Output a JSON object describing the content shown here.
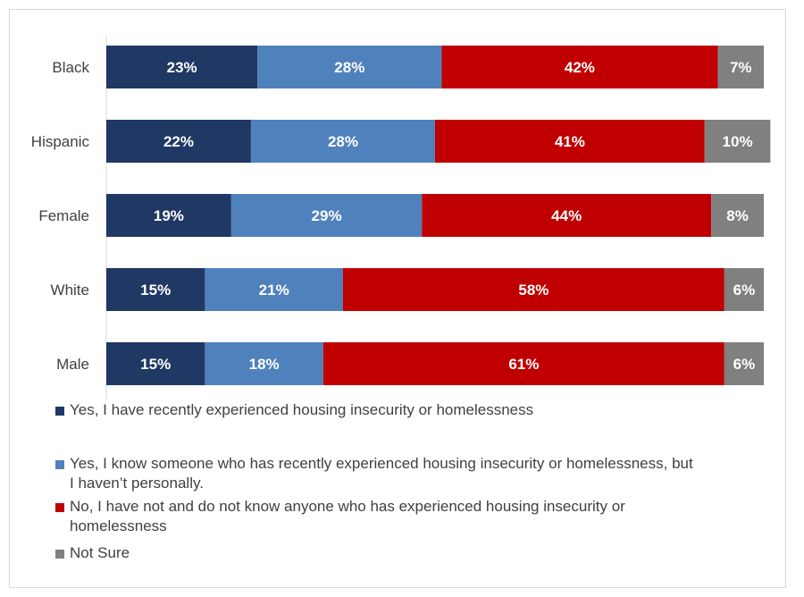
{
  "chart_data": {
    "type": "bar",
    "orientation": "horizontal",
    "stacked": true,
    "categories": [
      "Black",
      "Hispanic",
      "Female",
      "White",
      "Male"
    ],
    "series": [
      {
        "name": "Yes, I have recently experienced housing insecurity or homelessness",
        "color": "#1f3864",
        "values": [
          23,
          22,
          19,
          15,
          15
        ],
        "labels": [
          "23%",
          "22%",
          "19%",
          "15%",
          "15%"
        ]
      },
      {
        "name": "Yes, I know someone who has recently experienced housing insecurity or homelessness, but I haven’t personally.",
        "color": "#4f81bd",
        "values": [
          28,
          28,
          29,
          21,
          18
        ],
        "labels": [
          "28%",
          "28%",
          "29%",
          "21%",
          "18%"
        ]
      },
      {
        "name": "No, I have not and do not know anyone who has experienced housing insecurity or homelessness",
        "color": "#c00000",
        "values": [
          42,
          41,
          44,
          58,
          61
        ],
        "labels": [
          "42%",
          "41%",
          "44%",
          "58%",
          "61%"
        ]
      },
      {
        "name": "Not Sure",
        "color": "#808080",
        "values": [
          7,
          10,
          8,
          6,
          6
        ],
        "labels": [
          "7%",
          "10%",
          "8%",
          "6%",
          "6%"
        ]
      }
    ],
    "xlim": [
      0,
      100
    ],
    "grid": false,
    "legend_position": "bottom",
    "title": ""
  },
  "legend": {
    "items": [
      {
        "line1": "Yes, I have recently experienced housing insecurity or homelessness",
        "line2": ""
      },
      {
        "line1": "Yes, I know someone who has recently experienced housing insecurity or homelessness, but",
        "line2": "I haven’t personally."
      },
      {
        "line1": "No, I have not and do not know anyone who has experienced housing insecurity or",
        "line2": "homelessness"
      },
      {
        "line1": "Not Sure",
        "line2": ""
      }
    ]
  }
}
